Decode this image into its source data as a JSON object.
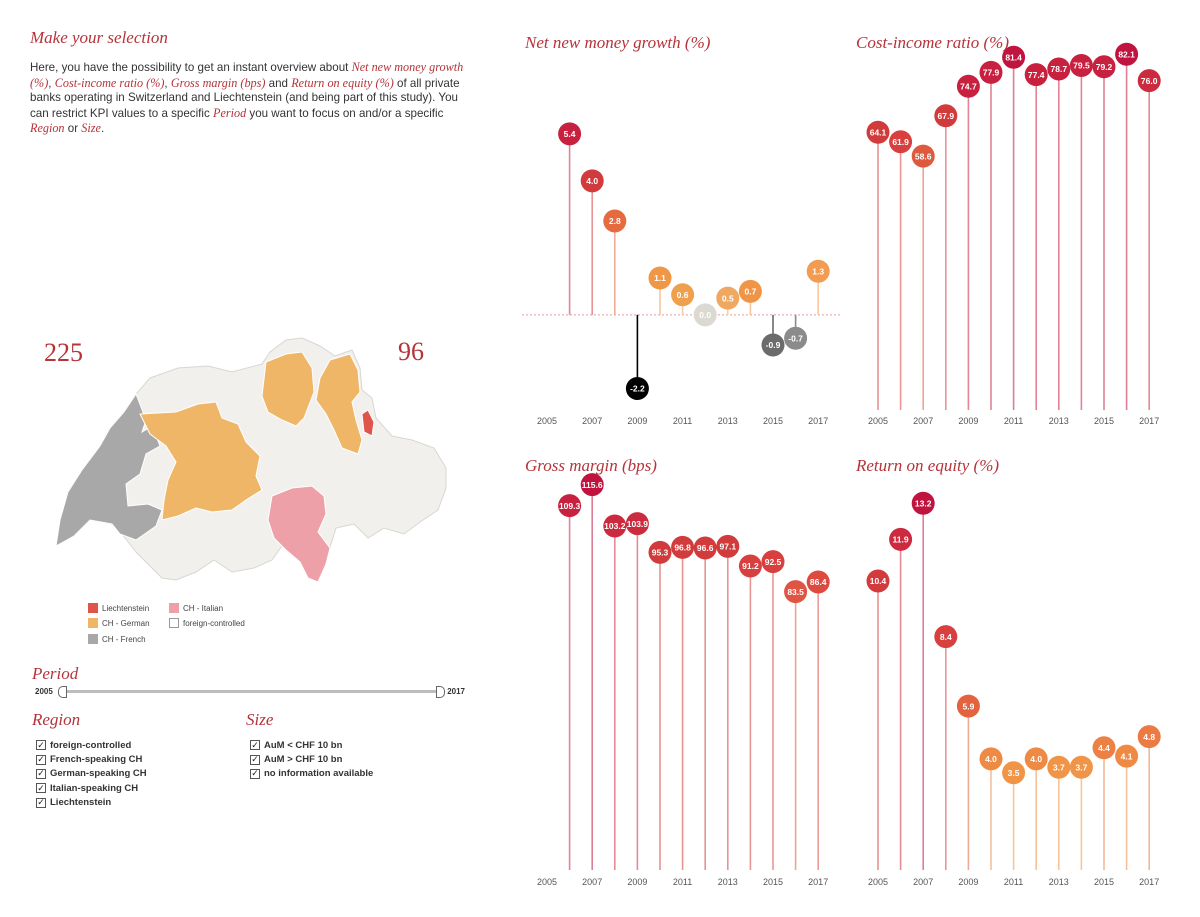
{
  "intro": {
    "title": "Make your selection",
    "p1": "Here, you have the possibility to get an instant overview about ",
    "kpi1": "Net new money growth (%)",
    "sep1": ", ",
    "kpi2": "Cost-income ratio (%)",
    "sep2": ", ",
    "kpi3": "Gross margin (bps)",
    "and1": " and ",
    "kpi4": "Return on equity (%)",
    "p2": " of all private banks operating in Switzerland and Liechtenstein (and being part of this study). You can restrict KPI values to a specific ",
    "period_word": "Period",
    "p3": " you want to focus on and/or a specific ",
    "region_word": "Region",
    "or_word": " or ",
    "size_word": "Size",
    "end": "."
  },
  "counts": {
    "left": "225",
    "right": "96"
  },
  "map": {
    "colors": {
      "liechtenstein": "#e0554b",
      "german": "#f0b668",
      "french": "#a8a8a8",
      "italian": "#eda0a8",
      "foreign": "#f2f0ed"
    }
  },
  "legend": [
    {
      "label": "Liechtenstein",
      "color": "#e0554b"
    },
    {
      "label": "CH - German",
      "color": "#f0b668"
    },
    {
      "label": "CH - French",
      "color": "#a8a8a8"
    },
    {
      "label": "CH - Italian",
      "color": "#eda0a8"
    },
    {
      "label": "foreign-controlled",
      "color": "#ffffff"
    }
  ],
  "period": {
    "title": "Period",
    "start": "2005",
    "end": "2017"
  },
  "region": {
    "title": "Region",
    "items": [
      "foreign-controlled",
      "French-speaking CH",
      "German-speaking CH",
      "Italian-speaking CH",
      "Liechtenstein"
    ]
  },
  "size": {
    "title": "Size",
    "items": [
      "AuM < CHF 10 bn",
      "AuM > CHF 10 bn",
      "no information available"
    ]
  },
  "check_mark": "✓",
  "chart_data": [
    {
      "type": "lollipop",
      "title": "Net new money growth (%)",
      "x": [
        2006,
        2007,
        2008,
        2009,
        2010,
        2011,
        2012,
        2013,
        2014,
        2015,
        2016,
        2017
      ],
      "values": [
        5.4,
        4.0,
        2.8,
        -2.2,
        1.1,
        0.6,
        0.0,
        0.5,
        0.7,
        -0.9,
        -0.7,
        1.3
      ],
      "colors": [
        "#c8203f",
        "#d23b3b",
        "#e56a3f",
        "#000000",
        "#ef9747",
        "#efa04e",
        "#dcd8d2",
        "#f0a860",
        "#f09548",
        "#6b6b6b",
        "#8b8b8b",
        "#f29b52"
      ],
      "xticks": [
        2005,
        2007,
        2009,
        2011,
        2013,
        2015,
        2017
      ],
      "ylim": [
        -2.9,
        6.8
      ]
    },
    {
      "type": "lollipop",
      "title": "Cost-income ratio (%)",
      "x": [
        2005,
        2006,
        2007,
        2008,
        2009,
        2010,
        2011,
        2012,
        2013,
        2014,
        2015,
        2016,
        2017
      ],
      "values": [
        64.1,
        61.9,
        58.6,
        67.9,
        74.7,
        77.9,
        81.4,
        77.4,
        78.7,
        79.5,
        79.2,
        82.1,
        76.0
      ],
      "colors": [
        "#d23b3b",
        "#d84040",
        "#de5a3f",
        "#d23b3b",
        "#c8203f",
        "#c8203f",
        "#c0143f",
        "#c8203f",
        "#c8203f",
        "#c8203f",
        "#c8203f",
        "#c0143f",
        "#cc2a3f"
      ],
      "xticks": [
        2005,
        2007,
        2009,
        2011,
        2013,
        2015,
        2017
      ],
      "ylim": [
        0,
        90
      ]
    },
    {
      "type": "lollipop",
      "title": "Gross margin (bps)",
      "x": [
        2006,
        2007,
        2008,
        2009,
        2010,
        2011,
        2012,
        2013,
        2014,
        2015,
        2016,
        2017
      ],
      "values": [
        109.3,
        115.6,
        103.2,
        103.9,
        95.3,
        96.8,
        96.6,
        97.1,
        91.2,
        92.5,
        83.5,
        86.4
      ],
      "colors": [
        "#c8203f",
        "#c0143f",
        "#cc2a3f",
        "#cc2a3f",
        "#d23b3b",
        "#d23b3b",
        "#d23b3b",
        "#d23b3b",
        "#d84040",
        "#d84040",
        "#e05443",
        "#dc4a40"
      ],
      "xticks": [
        2005,
        2007,
        2009,
        2011,
        2013,
        2015,
        2017
      ],
      "ylim": [
        0,
        120
      ]
    },
    {
      "type": "lollipop",
      "title": "Return on equity (%)",
      "x": [
        2005,
        2006,
        2007,
        2008,
        2009,
        2010,
        2011,
        2012,
        2013,
        2014,
        2015,
        2016,
        2017
      ],
      "values": [
        10.4,
        11.9,
        13.2,
        8.4,
        5.9,
        4.0,
        3.5,
        4.0,
        3.7,
        3.7,
        4.4,
        4.1,
        4.8
      ],
      "colors": [
        "#d23b3b",
        "#cc2a3f",
        "#c0143f",
        "#d84040",
        "#e3633f",
        "#ef8a45",
        "#f09548",
        "#ef8a45",
        "#f09548",
        "#f09548",
        "#ed8044",
        "#ef8a45",
        "#eb7a43"
      ],
      "xticks": [
        2005,
        2007,
        2009,
        2011,
        2013,
        2015,
        2017
      ],
      "ylim": [
        0,
        14
      ]
    }
  ]
}
